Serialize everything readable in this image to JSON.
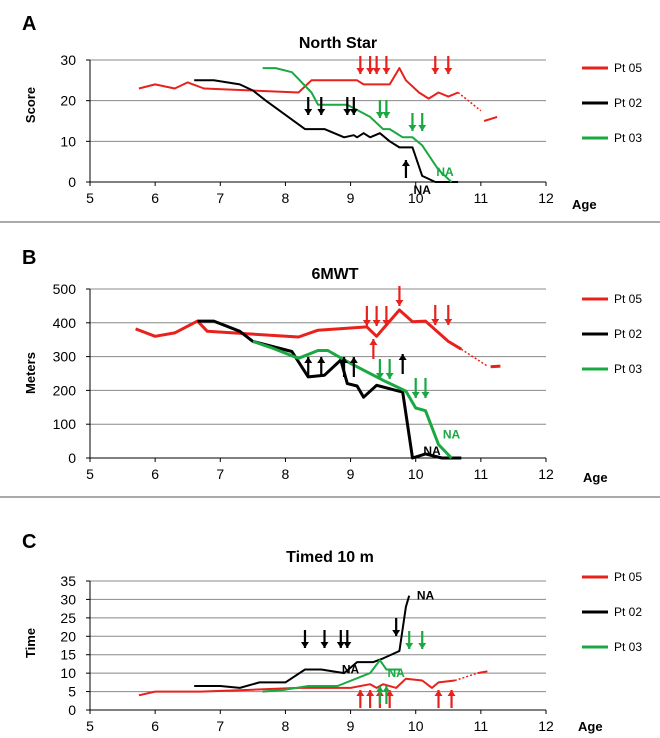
{
  "chart_data": [
    {
      "panel_letter": "A",
      "type": "line",
      "title": "North Star",
      "ylabel": "Score",
      "xlabel": "Age",
      "xlim": [
        5,
        12
      ],
      "ylim": [
        0,
        30
      ],
      "xticks": [
        5,
        6,
        7,
        8,
        9,
        10,
        11,
        12
      ],
      "yticks": [
        0,
        10,
        20,
        30
      ],
      "grid": "horizontal",
      "legend_position": "right",
      "series": [
        {
          "name": "Pt 05",
          "color": "#e8211d",
          "values": [
            [
              5.75,
              23
            ],
            [
              6.0,
              24
            ],
            [
              6.3,
              23
            ],
            [
              6.5,
              24.5
            ],
            [
              6.75,
              23
            ],
            [
              8.2,
              22
            ],
            [
              8.4,
              25
            ],
            [
              9.1,
              25
            ],
            [
              9.2,
              24
            ],
            [
              9.6,
              24
            ],
            [
              9.75,
              28
            ],
            [
              9.85,
              25
            ],
            [
              10.05,
              22
            ],
            [
              10.2,
              20.5
            ],
            [
              10.35,
              22
            ],
            [
              10.5,
              21
            ],
            [
              10.65,
              22
            ]
          ],
          "dashed_values": [
            [
              10.65,
              22
            ],
            [
              11.0,
              17.5
            ]
          ],
          "tail_values": [
            [
              11.05,
              15
            ],
            [
              11.25,
              16
            ]
          ]
        },
        {
          "name": "Pt 02",
          "color": "#000000",
          "values": [
            [
              6.6,
              25
            ],
            [
              6.9,
              25
            ],
            [
              7.3,
              24
            ],
            [
              7.5,
              22.5
            ],
            [
              7.7,
              20
            ],
            [
              8.3,
              13
            ],
            [
              8.6,
              13
            ],
            [
              8.9,
              11
            ],
            [
              9.05,
              11.5
            ],
            [
              9.1,
              11
            ],
            [
              9.2,
              12
            ],
            [
              9.3,
              11
            ],
            [
              9.45,
              12
            ],
            [
              9.6,
              10
            ],
            [
              9.75,
              8.5
            ],
            [
              9.95,
              8.5
            ],
            [
              10.1,
              1.5
            ],
            [
              10.3,
              0
            ],
            [
              10.65,
              0
            ]
          ]
        },
        {
          "name": "Pt 03",
          "color": "#1aa843",
          "values": [
            [
              7.65,
              28
            ],
            [
              7.85,
              28
            ],
            [
              8.1,
              27
            ],
            [
              8.4,
              22
            ],
            [
              8.5,
              19
            ],
            [
              8.95,
              19
            ],
            [
              9.3,
              16
            ],
            [
              9.5,
              13
            ],
            [
              9.6,
              13
            ],
            [
              9.8,
              11
            ],
            [
              9.95,
              11
            ],
            [
              10.1,
              9
            ],
            [
              10.35,
              3
            ],
            [
              10.55,
              0
            ]
          ]
        }
      ],
      "arrows": [
        {
          "x": 9.15,
          "dir": "down",
          "color": "#e8211d"
        },
        {
          "x": 9.3,
          "dir": "down",
          "color": "#e8211d"
        },
        {
          "x": 9.4,
          "dir": "down",
          "color": "#e8211d"
        },
        {
          "x": 9.55,
          "dir": "down",
          "color": "#e8211d"
        },
        {
          "x": 10.3,
          "dir": "down",
          "color": "#e8211d"
        },
        {
          "x": 10.5,
          "dir": "down",
          "color": "#e8211d"
        },
        {
          "x": 8.35,
          "dir": "down",
          "color": "#000000"
        },
        {
          "x": 8.55,
          "dir": "down",
          "color": "#000000"
        },
        {
          "x": 8.95,
          "dir": "down",
          "color": "#000000"
        },
        {
          "x": 9.05,
          "dir": "down",
          "color": "#000000"
        },
        {
          "x": 9.85,
          "dir": "up",
          "color": "#000000"
        },
        {
          "x": 9.45,
          "dir": "down",
          "color": "#1aa843"
        },
        {
          "x": 9.55,
          "dir": "down",
          "color": "#1aa843"
        },
        {
          "x": 9.95,
          "dir": "down",
          "color": "#1aa843"
        },
        {
          "x": 10.1,
          "dir": "down",
          "color": "#1aa843"
        }
      ],
      "annotations": [
        {
          "text": "NA",
          "x": 10.1,
          "y": -2,
          "color": "#000000"
        },
        {
          "text": "NA",
          "x": 10.45,
          "y": 2.5,
          "color": "#1aa843"
        }
      ]
    },
    {
      "panel_letter": "B",
      "type": "line",
      "title": "6MWT",
      "ylabel": "Meters",
      "xlabel": "Age",
      "xlim": [
        5,
        12
      ],
      "ylim": [
        0,
        500
      ],
      "xticks": [
        5,
        6,
        7,
        8,
        9,
        10,
        11,
        12
      ],
      "yticks": [
        0,
        100,
        200,
        300,
        400,
        500
      ],
      "grid": "horizontal",
      "legend_position": "right",
      "series": [
        {
          "name": "Pt 05",
          "color": "#e8211d",
          "values": [
            [
              5.7,
              382
            ],
            [
              6.0,
              360
            ],
            [
              6.3,
              370
            ],
            [
              6.65,
              405
            ],
            [
              6.8,
              375
            ],
            [
              8.2,
              358
            ],
            [
              8.5,
              378
            ],
            [
              9.25,
              388
            ],
            [
              9.4,
              360
            ],
            [
              9.75,
              438
            ],
            [
              9.95,
              403
            ],
            [
              10.15,
              405
            ],
            [
              10.5,
              345
            ],
            [
              10.7,
              322
            ]
          ],
          "dashed_values": [
            [
              10.7,
              322
            ],
            [
              11.1,
              272
            ]
          ],
          "tail_values": [
            [
              11.15,
              270
            ],
            [
              11.3,
              272
            ]
          ]
        },
        {
          "name": "Pt 02",
          "color": "#000000",
          "values": [
            [
              6.65,
              405
            ],
            [
              6.9,
              405
            ],
            [
              7.3,
              375
            ],
            [
              7.5,
              345
            ],
            [
              8.1,
              315
            ],
            [
              8.35,
              240
            ],
            [
              8.6,
              245
            ],
            [
              8.85,
              290
            ],
            [
              8.95,
              220
            ],
            [
              9.1,
              213
            ],
            [
              9.2,
              180
            ],
            [
              9.4,
              215
            ],
            [
              9.7,
              200
            ],
            [
              9.8,
              195
            ],
            [
              9.95,
              0
            ],
            [
              10.15,
              12
            ],
            [
              10.4,
              0
            ],
            [
              10.7,
              0
            ]
          ]
        },
        {
          "name": "Pt 03",
          "color": "#1aa843",
          "values": [
            [
              7.5,
              345
            ],
            [
              7.8,
              325
            ],
            [
              8.2,
              295
            ],
            [
              8.5,
              318
            ],
            [
              8.65,
              318
            ],
            [
              9.0,
              280
            ],
            [
              9.5,
              230
            ],
            [
              9.85,
              198
            ],
            [
              10.0,
              148
            ],
            [
              10.15,
              140
            ],
            [
              10.35,
              40
            ],
            [
              10.55,
              0
            ]
          ]
        }
      ],
      "arrows": [
        {
          "x": 9.25,
          "dir": "down",
          "color": "#e8211d"
        },
        {
          "x": 9.4,
          "dir": "down",
          "color": "#e8211d"
        },
        {
          "x": 9.55,
          "dir": "down",
          "color": "#e8211d"
        },
        {
          "x": 9.75,
          "dir": "down",
          "color": "#e8211d"
        },
        {
          "x": 9.35,
          "dir": "up",
          "color": "#e8211d"
        },
        {
          "x": 10.3,
          "dir": "down",
          "color": "#e8211d"
        },
        {
          "x": 10.5,
          "dir": "down",
          "color": "#e8211d"
        },
        {
          "x": 8.35,
          "dir": "up",
          "color": "#000000"
        },
        {
          "x": 8.55,
          "dir": "up",
          "color": "#000000"
        },
        {
          "x": 8.9,
          "dir": "up",
          "color": "#000000"
        },
        {
          "x": 9.05,
          "dir": "up",
          "color": "#000000"
        },
        {
          "x": 9.8,
          "dir": "up",
          "color": "#000000"
        },
        {
          "x": 9.45,
          "dir": "down",
          "color": "#1aa843"
        },
        {
          "x": 9.6,
          "dir": "down",
          "color": "#1aa843"
        },
        {
          "x": 10.0,
          "dir": "down",
          "color": "#1aa843"
        },
        {
          "x": 10.15,
          "dir": "down",
          "color": "#1aa843"
        }
      ],
      "annotations": [
        {
          "text": "NA",
          "x": 10.25,
          "y": 20,
          "color": "#000000"
        },
        {
          "text": "NA",
          "x": 10.55,
          "y": 70,
          "color": "#1aa843"
        }
      ]
    },
    {
      "panel_letter": "C",
      "type": "line",
      "title": "Timed 10 m",
      "ylabel": "Time",
      "xlabel": "Age",
      "xlim": [
        5,
        12
      ],
      "ylim": [
        0,
        35
      ],
      "xticks": [
        5,
        6,
        7,
        8,
        9,
        10,
        11,
        12
      ],
      "yticks": [
        0,
        5,
        10,
        15,
        20,
        25,
        30,
        35
      ],
      "grid": "horizontal",
      "legend_position": "right",
      "series": [
        {
          "name": "Pt 05",
          "color": "#e8211d",
          "values": [
            [
              5.75,
              4
            ],
            [
              6.0,
              5
            ],
            [
              6.7,
              5
            ],
            [
              7.5,
              5.5
            ],
            [
              8.2,
              6
            ],
            [
              9.0,
              6
            ],
            [
              9.3,
              7
            ],
            [
              9.4,
              6
            ],
            [
              9.5,
              7
            ],
            [
              9.7,
              6
            ],
            [
              9.85,
              8.5
            ],
            [
              10.1,
              8
            ],
            [
              10.25,
              6
            ],
            [
              10.35,
              7.5
            ],
            [
              10.6,
              8
            ]
          ],
          "dashed_values": [
            [
              10.6,
              8
            ],
            [
              10.95,
              10
            ]
          ],
          "tail_values": [
            [
              10.95,
              10
            ],
            [
              11.1,
              10.5
            ]
          ]
        },
        {
          "name": "Pt 02",
          "color": "#000000",
          "values": [
            [
              6.6,
              6.5
            ],
            [
              7.0,
              6.5
            ],
            [
              7.3,
              6
            ],
            [
              7.6,
              7.5
            ],
            [
              8.0,
              7.5
            ],
            [
              8.3,
              11
            ],
            [
              8.55,
              11
            ],
            [
              8.9,
              10
            ],
            [
              9.1,
              13
            ],
            [
              9.35,
              13
            ],
            [
              9.5,
              14
            ],
            [
              9.75,
              16
            ],
            [
              9.85,
              28
            ],
            [
              9.9,
              31
            ]
          ]
        },
        {
          "name": "Pt 03",
          "color": "#1aa843",
          "values": [
            [
              7.65,
              5
            ],
            [
              8.0,
              5.5
            ],
            [
              8.35,
              6.5
            ],
            [
              8.8,
              6.5
            ],
            [
              9.3,
              10
            ],
            [
              9.45,
              13.5
            ],
            [
              9.55,
              11
            ],
            [
              9.75,
              11
            ]
          ]
        }
      ],
      "arrows": [
        {
          "x": 9.15,
          "dir": "up",
          "color": "#e8211d"
        },
        {
          "x": 9.3,
          "dir": "up",
          "color": "#e8211d"
        },
        {
          "x": 9.45,
          "dir": "up",
          "color": "#e8211d"
        },
        {
          "x": 9.6,
          "dir": "up",
          "color": "#e8211d"
        },
        {
          "x": 10.35,
          "dir": "up",
          "color": "#e8211d"
        },
        {
          "x": 10.55,
          "dir": "up",
          "color": "#e8211d"
        },
        {
          "x": 8.3,
          "dir": "down",
          "color": "#000000"
        },
        {
          "x": 8.6,
          "dir": "down",
          "color": "#000000"
        },
        {
          "x": 8.85,
          "dir": "down",
          "color": "#000000"
        },
        {
          "x": 8.95,
          "dir": "down",
          "color": "#000000"
        },
        {
          "x": 9.7,
          "dir": "down",
          "color": "#000000"
        },
        {
          "x": 9.45,
          "dir": "up",
          "color": "#1aa843"
        },
        {
          "x": 9.55,
          "dir": "up",
          "color": "#1aa843"
        },
        {
          "x": 9.9,
          "dir": "down",
          "color": "#1aa843"
        },
        {
          "x": 10.1,
          "dir": "down",
          "color": "#1aa843"
        }
      ],
      "annotations": [
        {
          "text": "NA",
          "x": 10.15,
          "y": 31,
          "color": "#000000"
        },
        {
          "text": "NA",
          "x": 9.0,
          "y": 11,
          "color": "#000000"
        },
        {
          "text": "NA",
          "x": 9.7,
          "y": 10,
          "color": "#1aa843"
        }
      ]
    }
  ]
}
